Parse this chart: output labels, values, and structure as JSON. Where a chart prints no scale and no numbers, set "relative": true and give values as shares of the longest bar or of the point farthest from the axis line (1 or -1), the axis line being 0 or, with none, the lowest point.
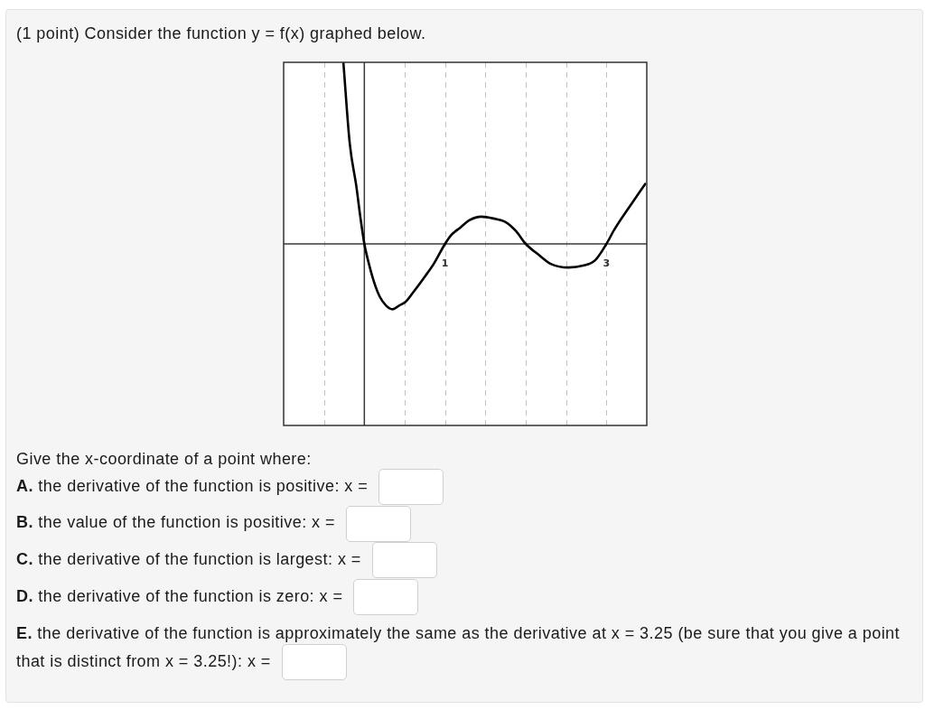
{
  "chart_data": {
    "type": "line",
    "title": "(1 point) Consider the function y = f(x) graphed below.",
    "x": [
      -0.26,
      -0.18,
      -0.1,
      -0.05,
      0,
      0.04,
      0.12,
      0.19,
      0.27,
      0.35,
      0.43,
      0.51,
      0.6,
      0.75,
      0.86,
      1.0,
      1.08,
      1.19,
      1.3,
      1.45,
      1.6,
      1.75,
      1.88,
      2.0,
      2.16,
      2.31,
      2.53,
      2.71,
      2.86,
      3.0,
      3.1,
      3.31,
      3.48
    ],
    "values": [
      1.0,
      0.55,
      0.32,
      0.15,
      0,
      -0.08,
      -0.21,
      -0.29,
      -0.34,
      -0.36,
      -0.34,
      -0.32,
      -0.27,
      -0.18,
      -0.11,
      0,
      0.05,
      0.09,
      0.13,
      0.15,
      0.14,
      0.12,
      0.07,
      0,
      -0.06,
      -0.11,
      -0.13,
      -0.12,
      -0.09,
      0,
      0.08,
      0.22,
      0.33
    ],
    "color": "#000000",
    "relative": true,
    "xlim": [
      -1,
      3.5
    ],
    "xticks": [
      {
        "value": -0.5,
        "label": null
      },
      {
        "value": 0,
        "label": null
      },
      {
        "value": 0.5,
        "label": null
      },
      1,
      {
        "value": 1.5,
        "label": null
      },
      {
        "value": 2,
        "label": null
      },
      {
        "value": 2.5,
        "label": null
      },
      3
    ],
    "grid": "x",
    "tick_labels": "x",
    "annotations": [
      "Give the x-coordinate of a point where:",
      "A. the derivative of the function is positive: x =",
      "B. the value of the function is positive: x =",
      "C. the derivative of the function is largest: x =",
      "D. the derivative of the function is zero: x =",
      "E. the derivative of the function is approximately the same as the derivative at x = 3.25 (be sure that you give a point that is distinct from x = 3.25!): x ="
    ]
  }
}
